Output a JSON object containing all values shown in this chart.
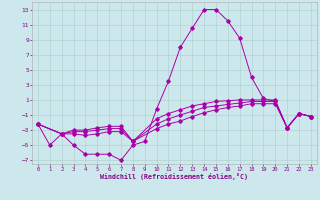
{
  "xlabel": "Windchill (Refroidissement éolien,°C)",
  "background_color": "#cce8ec",
  "grid_color": "#aacccc",
  "line_color": "#aa00aa",
  "xlim": [
    -0.5,
    23.5
  ],
  "ylim": [
    -7.5,
    14.0
  ],
  "yticks": [
    -7,
    -5,
    -3,
    -1,
    1,
    3,
    5,
    7,
    9,
    11,
    13
  ],
  "xticks": [
    0,
    1,
    2,
    3,
    4,
    5,
    6,
    7,
    8,
    9,
    10,
    11,
    12,
    13,
    14,
    15,
    16,
    17,
    18,
    19,
    20,
    21,
    22,
    23
  ],
  "line1_x": [
    0,
    1,
    2,
    3,
    4,
    5,
    6,
    7,
    8,
    9,
    10,
    11,
    12,
    13,
    14,
    15,
    16,
    17,
    18,
    19,
    20,
    21,
    22,
    23
  ],
  "line1_y": [
    -2.2,
    -5.0,
    -3.5,
    -5.0,
    -6.2,
    -6.2,
    -6.2,
    -7.0,
    -5.0,
    -4.5,
    -0.2,
    3.5,
    8.0,
    10.5,
    13.0,
    13.0,
    11.5,
    9.2,
    4.0,
    1.2,
    0.8,
    -2.7,
    -0.8,
    -1.2
  ],
  "line2_x": [
    0,
    2,
    3,
    4,
    5,
    6,
    7,
    8,
    10,
    11,
    12,
    13,
    14,
    15,
    16,
    17,
    18,
    19,
    20,
    21,
    22,
    23
  ],
  "line2_y": [
    -2.2,
    -3.5,
    -3.0,
    -3.0,
    -2.7,
    -2.5,
    -2.5,
    -4.5,
    -1.5,
    -0.8,
    -0.3,
    0.2,
    0.5,
    0.8,
    0.9,
    1.0,
    1.0,
    1.0,
    1.0,
    -2.7,
    -0.8,
    -1.2
  ],
  "line3_x": [
    0,
    2,
    3,
    4,
    5,
    6,
    7,
    8,
    10,
    11,
    12,
    13,
    14,
    15,
    16,
    17,
    18,
    19,
    20,
    21,
    22,
    23
  ],
  "line3_y": [
    -2.2,
    -3.5,
    -3.2,
    -3.2,
    -3.0,
    -2.8,
    -2.8,
    -4.5,
    -2.2,
    -1.5,
    -1.0,
    -0.5,
    0.0,
    0.2,
    0.4,
    0.6,
    0.8,
    0.8,
    0.8,
    -2.7,
    -0.8,
    -1.2
  ],
  "line4_x": [
    0,
    2,
    3,
    4,
    5,
    6,
    7,
    8,
    10,
    11,
    12,
    13,
    14,
    15,
    16,
    17,
    18,
    19,
    20,
    21,
    22,
    23
  ],
  "line4_y": [
    -2.2,
    -3.5,
    -3.5,
    -3.7,
    -3.5,
    -3.2,
    -3.2,
    -4.5,
    -2.8,
    -2.2,
    -1.8,
    -1.2,
    -0.7,
    -0.3,
    0.0,
    0.2,
    0.5,
    0.5,
    0.5,
    -2.7,
    -0.8,
    -1.2
  ]
}
